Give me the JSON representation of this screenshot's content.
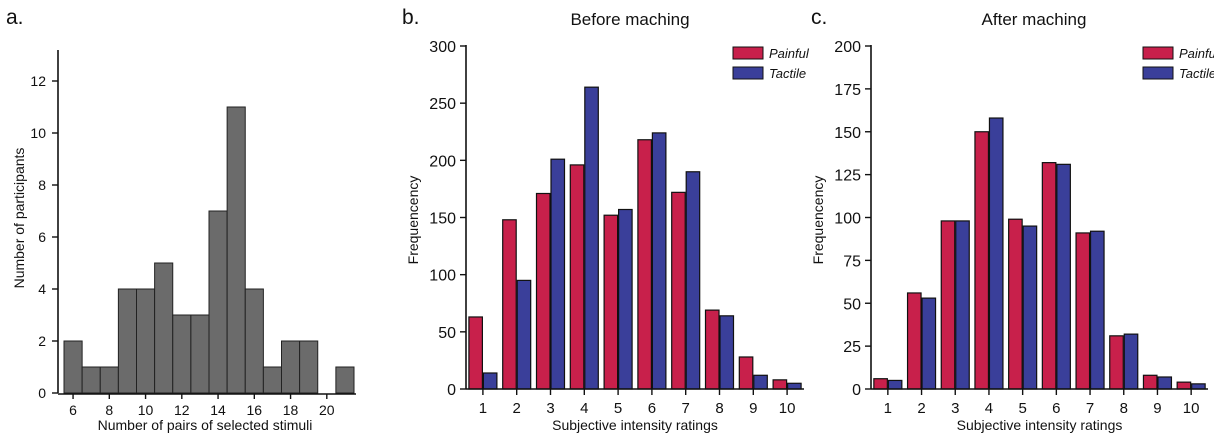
{
  "colors": {
    "hist_fill": "#6b6b6b",
    "painful": "#c8204b",
    "tactile": "#3a3f9a",
    "axis": "#111111"
  },
  "chart_data": [
    {
      "panel": "a.",
      "type": "bar",
      "title": "",
      "xlabel": "Number of pairs of selected stimuli",
      "ylabel": "Number of participants",
      "xlim": [
        5.5,
        21.5
      ],
      "ylim": [
        0,
        13
      ],
      "xticks": [
        6,
        8,
        10,
        12,
        14,
        16,
        18,
        20
      ],
      "yticks": [
        0,
        2,
        4,
        6,
        8,
        10,
        12
      ],
      "grid": false,
      "x": [
        6,
        7,
        8,
        9,
        10,
        11,
        12,
        13,
        14,
        15,
        16,
        17,
        18,
        19,
        21
      ],
      "values": [
        2,
        1,
        1,
        4,
        4,
        5,
        3,
        3,
        7,
        11,
        4,
        1,
        2,
        2,
        1
      ]
    },
    {
      "panel": "b.",
      "type": "bar",
      "title": "Before maching",
      "xlabel": "Subjective intensity ratings",
      "ylabel": "Frequencency",
      "ylim": [
        0,
        300
      ],
      "yticks": [
        0,
        50,
        100,
        150,
        200,
        250,
        300
      ],
      "legend_position": "top-right",
      "grid": false,
      "categories": [
        "1",
        "2",
        "3",
        "4",
        "5",
        "6",
        "7",
        "8",
        "9",
        "10"
      ],
      "series": [
        {
          "name": "Painful",
          "color": "#c8204b",
          "values": [
            63,
            148,
            171,
            196,
            152,
            218,
            172,
            69,
            28,
            8
          ]
        },
        {
          "name": "Tactile",
          "color": "#3a3f9a",
          "values": [
            14,
            95,
            201,
            264,
            157,
            224,
            190,
            64,
            12,
            5
          ]
        }
      ]
    },
    {
      "panel": "c.",
      "type": "bar",
      "title": "After maching",
      "xlabel": "Subjective intensity ratings",
      "ylabel": "Frequencency",
      "ylim": [
        0,
        200
      ],
      "yticks": [
        0,
        25,
        50,
        75,
        100,
        125,
        150,
        175,
        200
      ],
      "legend_position": "top-right",
      "grid": false,
      "categories": [
        "1",
        "2",
        "3",
        "4",
        "5",
        "6",
        "7",
        "8",
        "9",
        "10"
      ],
      "series": [
        {
          "name": "Painful",
          "color": "#c8204b",
          "values": [
            6,
            56,
            98,
            150,
            99,
            132,
            91,
            31,
            8,
            4
          ]
        },
        {
          "name": "Tactile",
          "color": "#3a3f9a",
          "values": [
            5,
            53,
            98,
            158,
            95,
            131,
            92,
            32,
            7,
            3
          ]
        }
      ]
    }
  ]
}
